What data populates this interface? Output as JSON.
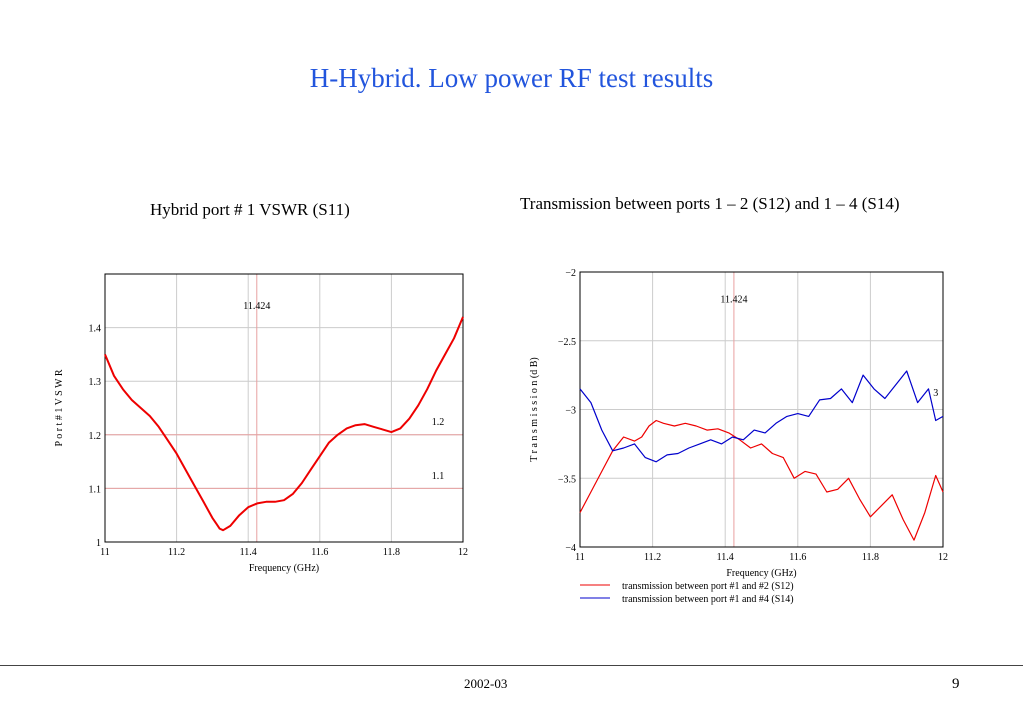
{
  "slide": {
    "title": "H-Hybrid.  Low power RF test results",
    "footer_date": "2002-03",
    "page_number": "9"
  },
  "chart_data": [
    {
      "type": "line",
      "title": "Hybrid port # 1 VSWR (S11)",
      "xlabel": "Frequency (GHz)",
      "ylabel": "P o r t  # 1   V S W R",
      "xlim": [
        11,
        12
      ],
      "ylim": [
        1,
        1.5
      ],
      "x_ticks": [
        "11",
        "11.2",
        "11.4",
        "11.6",
        "11.8",
        "12"
      ],
      "y_ticks": [
        "1",
        "1.1",
        "1.2",
        "1.3",
        "1.4"
      ],
      "grid": true,
      "annotations": [
        {
          "text": "11.424",
          "x": 11.424,
          "y": 1.435
        },
        {
          "text": "1.2",
          "x": 11.93,
          "y": 1.218
        },
        {
          "text": "1.1",
          "x": 11.93,
          "y": 1.118
        }
      ],
      "reference_lines": [
        {
          "axis": "x",
          "value": 11.424,
          "color": "#e8a0a0"
        },
        {
          "axis": "y",
          "value": 1.2,
          "color": "#e8a0a0"
        },
        {
          "axis": "y",
          "value": 1.1,
          "color": "#e8a0a0"
        }
      ],
      "series": [
        {
          "color": "#ee0000",
          "x": [
            11.0,
            11.025,
            11.05,
            11.075,
            11.1,
            11.125,
            11.15,
            11.175,
            11.2,
            11.225,
            11.25,
            11.275,
            11.3,
            11.31,
            11.32,
            11.33,
            11.35,
            11.375,
            11.4,
            11.425,
            11.45,
            11.475,
            11.5,
            11.525,
            11.55,
            11.575,
            11.6,
            11.625,
            11.65,
            11.675,
            11.7,
            11.725,
            11.75,
            11.775,
            11.8,
            11.825,
            11.85,
            11.875,
            11.9,
            11.925,
            11.95,
            11.975,
            12.0
          ],
          "y": [
            1.35,
            1.31,
            1.285,
            1.265,
            1.25,
            1.235,
            1.215,
            1.19,
            1.165,
            1.135,
            1.105,
            1.075,
            1.045,
            1.035,
            1.025,
            1.022,
            1.03,
            1.05,
            1.065,
            1.072,
            1.075,
            1.075,
            1.078,
            1.09,
            1.11,
            1.135,
            1.16,
            1.185,
            1.2,
            1.212,
            1.218,
            1.22,
            1.215,
            1.21,
            1.205,
            1.212,
            1.23,
            1.255,
            1.285,
            1.32,
            1.35,
            1.38,
            1.42
          ]
        }
      ]
    },
    {
      "type": "line",
      "title": "Transmission between ports 1 – 2 (S12) and 1 – 4 (S14)",
      "xlabel": "Frequency (GHz)",
      "ylabel": "T r a n s m i s s i o n  (d B)",
      "xlim": [
        11,
        12
      ],
      "ylim": [
        -4,
        -2
      ],
      "x_ticks": [
        "11",
        "11.2",
        "11.4",
        "11.6",
        "11.8",
        "12"
      ],
      "y_ticks": [
        "−2",
        "−2.5",
        "−3",
        "−3.5",
        "−4"
      ],
      "grid": true,
      "legend_position": "bottom",
      "annotations": [
        {
          "text": "11.424",
          "x": 11.424,
          "y": -2.22
        },
        {
          "text": "3",
          "x": 11.98,
          "y": -2.9
        }
      ],
      "reference_lines": [
        {
          "axis": "x",
          "value": 11.424,
          "color": "#e8a0a0"
        }
      ],
      "series": [
        {
          "name": "transmission between port #1 and #2 (S12)",
          "color": "#ee0000",
          "x": [
            11.0,
            11.03,
            11.06,
            11.09,
            11.12,
            11.15,
            11.17,
            11.19,
            11.21,
            11.23,
            11.26,
            11.29,
            11.32,
            11.35,
            11.38,
            11.41,
            11.44,
            11.47,
            11.5,
            11.53,
            11.56,
            11.59,
            11.62,
            11.65,
            11.68,
            11.71,
            11.74,
            11.77,
            11.8,
            11.83,
            11.86,
            11.89,
            11.92,
            11.95,
            11.98,
            12.0
          ],
          "y": [
            -3.75,
            -3.6,
            -3.45,
            -3.3,
            -3.2,
            -3.23,
            -3.2,
            -3.12,
            -3.08,
            -3.1,
            -3.12,
            -3.1,
            -3.12,
            -3.15,
            -3.14,
            -3.17,
            -3.22,
            -3.28,
            -3.25,
            -3.32,
            -3.35,
            -3.5,
            -3.45,
            -3.47,
            -3.6,
            -3.58,
            -3.5,
            -3.65,
            -3.78,
            -3.7,
            -3.62,
            -3.8,
            -3.95,
            -3.75,
            -3.48,
            -3.6
          ]
        },
        {
          "name": "transmission between port #1 and #4 (S14)",
          "color": "#0000cc",
          "x": [
            11.0,
            11.03,
            11.06,
            11.09,
            11.12,
            11.15,
            11.18,
            11.21,
            11.24,
            11.27,
            11.3,
            11.33,
            11.36,
            11.39,
            11.42,
            11.45,
            11.48,
            11.51,
            11.54,
            11.57,
            11.6,
            11.63,
            11.66,
            11.69,
            11.72,
            11.75,
            11.78,
            11.81,
            11.84,
            11.87,
            11.9,
            11.93,
            11.96,
            11.98,
            12.0
          ],
          "y": [
            -2.85,
            -2.95,
            -3.15,
            -3.3,
            -3.28,
            -3.25,
            -3.35,
            -3.38,
            -3.33,
            -3.32,
            -3.28,
            -3.25,
            -3.22,
            -3.25,
            -3.2,
            -3.22,
            -3.15,
            -3.17,
            -3.1,
            -3.05,
            -3.03,
            -3.05,
            -2.93,
            -2.92,
            -2.85,
            -2.95,
            -2.75,
            -2.85,
            -2.92,
            -2.82,
            -2.72,
            -2.95,
            -2.85,
            -3.08,
            -3.05
          ]
        }
      ]
    }
  ]
}
